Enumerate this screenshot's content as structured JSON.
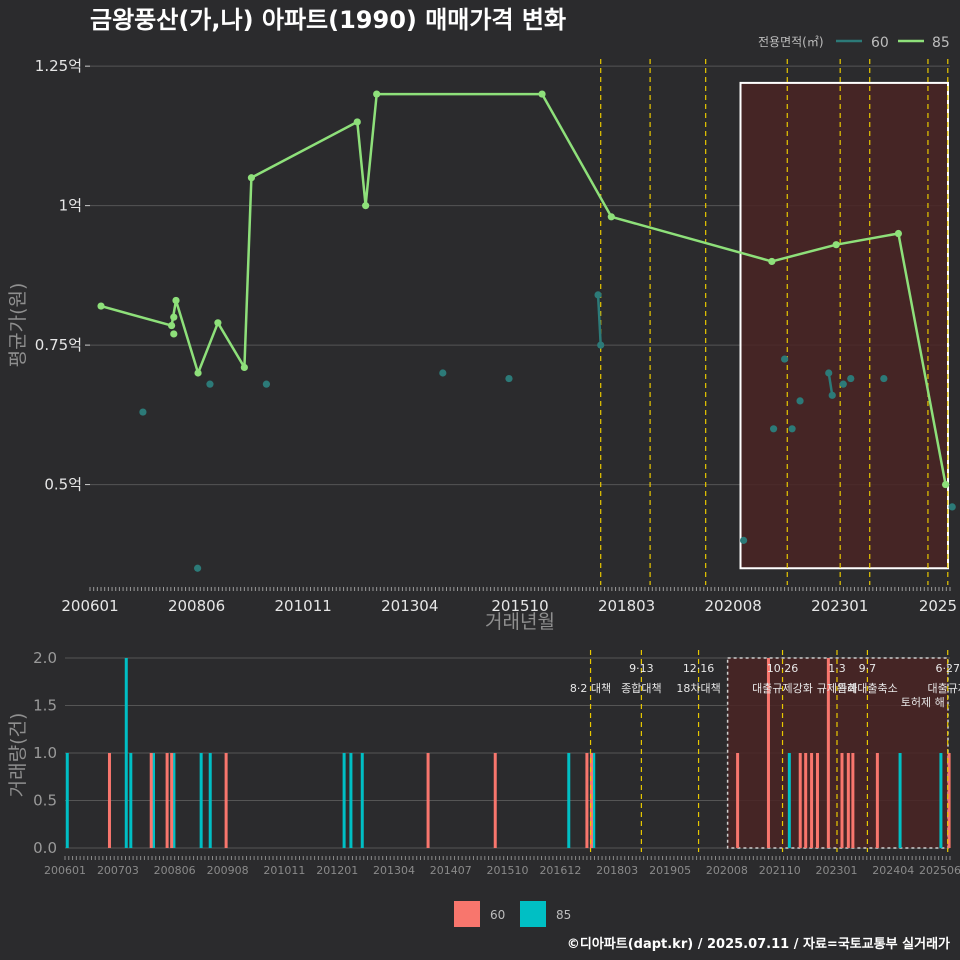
{
  "title": "금왕풍산(가,나) 아파트(1990) 매매가격 변화",
  "caption": "©디아파트(dapt.kr) / 2025.07.11 / 자료=국토교통부 실거래가",
  "colors": {
    "background": "#2b2b2d",
    "line85": "#8ee07a",
    "point60": "#2c7a78",
    "bar60": "#f8766d",
    "bar85": "#00bfc4",
    "highlight_fill": "#4a2525",
    "policy_line": "#e8c800",
    "grid": "#555555"
  },
  "chart_data": [
    {
      "type": "line",
      "ylabel": "평균가(원)",
      "xlabel": "거래년월",
      "x_ticks": [
        "200601",
        "200806",
        "201011",
        "201304",
        "201510",
        "201803",
        "202008",
        "202301",
        "2025"
      ],
      "y_ticks": [
        {
          "value": 0.5,
          "label": "0.5억"
        },
        {
          "value": 0.75,
          "label": "0.75억"
        },
        {
          "value": 1.0,
          "label": "1억"
        },
        {
          "value": 1.25,
          "label": "1.25억"
        }
      ],
      "xlim": [
        2006.0,
        2025.5
      ],
      "ylim": [
        0.32,
        1.27
      ],
      "legend": {
        "title": "전용면적(㎡)",
        "position": "top-right",
        "entries": [
          "60",
          "85"
        ]
      },
      "highlight_x": [
        2020.75,
        2025.5
      ],
      "highlight_y": [
        0.35,
        1.22
      ],
      "policy_x": [
        2017.58,
        2018.7,
        2019.96,
        2021.81,
        2023.01,
        2023.68,
        2025.0,
        2025.45
      ],
      "series": [
        {
          "name": "85",
          "kind": "line",
          "x": [
            2006.25,
            2007.85,
            2007.95,
            2008.45,
            2008.9,
            2009.5,
            2009.66,
            2012.06,
            2012.25,
            2012.5,
            2016.25,
            2017.82,
            2021.46,
            2022.92,
            2024.33,
            2025.4
          ],
          "y": [
            0.82,
            0.785,
            0.83,
            0.7,
            0.79,
            0.71,
            1.05,
            1.15,
            1.0,
            1.2,
            1.2,
            0.98,
            0.9,
            0.93,
            0.95,
            0.5
          ],
          "extra_points": [
            {
              "x": 2007.9,
              "y": 0.8
            },
            {
              "x": 2007.9,
              "y": 0.77
            }
          ]
        },
        {
          "name": "60",
          "kind": "points",
          "x": [
            2007.2,
            2008.72,
            2008.44,
            2010.0,
            2014.0,
            2015.5,
            2017.52,
            2017.58,
            2020.82,
            2021.5,
            2021.75,
            2021.92,
            2022.1,
            2022.75,
            2022.83,
            2023.08,
            2023.25,
            2024.0,
            2025.55
          ],
          "y": [
            0.63,
            0.68,
            0.35,
            0.68,
            0.7,
            0.69,
            0.84,
            0.75,
            0.4,
            0.6,
            0.725,
            0.6,
            0.65,
            0.7,
            0.66,
            0.68,
            0.69,
            0.69,
            0.46
          ],
          "connect": [
            [
              6,
              7
            ],
            [
              13,
              14
            ]
          ]
        }
      ]
    },
    {
      "type": "bar",
      "ylabel": "거래량(건)",
      "y_ticks": [
        "0.0",
        "0.5",
        "1.0",
        "1.5",
        "2.0"
      ],
      "ylim": [
        0,
        2
      ],
      "x_ticks": [
        "200601",
        "200703",
        "200806",
        "200908",
        "201011",
        "201201",
        "201304",
        "201407",
        "201510",
        "201612",
        "201803",
        "201905",
        "202008",
        "202110",
        "202301",
        "202404",
        "202506"
      ],
      "legend": {
        "position": "bottom",
        "entries": [
          "60",
          "85"
        ]
      },
      "highlight_x": [
        2020.6,
        2025.5
      ],
      "policies": [
        {
          "x": 2017.58,
          "line1": "",
          "line2": "8·2 대책"
        },
        {
          "x": 2018.7,
          "line1": "9·13",
          "line2": "종합대책"
        },
        {
          "x": 2019.96,
          "line1": "12·16",
          "line2": "18차대책"
        },
        {
          "x": 2021.81,
          "line1": "10·26",
          "line2": "대출규제강화"
        },
        {
          "x": 2023.01,
          "line1": "1·3",
          "line2": "규제완화"
        },
        {
          "x": 2023.68,
          "line1": "9·7",
          "line2": "특례대출축소"
        },
        {
          "x": 2025.45,
          "line1": "6·27",
          "line2": "대출규제"
        }
      ],
      "policy_extra": [
        {
          "x": 2024.9,
          "line": "토허제 해"
        }
      ],
      "series": [
        {
          "name": "85",
          "x": [
            2006.05,
            2007.35,
            2007.45,
            2007.95,
            2008.4,
            2009.0,
            2009.2,
            2012.15,
            2012.3,
            2012.55,
            2017.1,
            2017.65,
            2021.96,
            2024.4,
            2025.3
          ],
          "values": [
            1,
            2,
            1,
            1,
            1,
            1,
            1,
            1,
            1,
            1,
            1,
            1,
            1,
            1,
            1
          ]
        },
        {
          "name": "60",
          "x": [
            2006.98,
            2007.9,
            2008.25,
            2008.35,
            2009.55,
            2014.0,
            2015.48,
            2017.5,
            2017.6,
            2020.82,
            2021.5,
            2022.2,
            2022.32,
            2022.45,
            2022.58,
            2022.82,
            2023.12,
            2023.26,
            2023.36,
            2023.9,
            2025.48
          ],
          "values": [
            1,
            1,
            1,
            1,
            1,
            1,
            1,
            1,
            1,
            1,
            2,
            1,
            1,
            1,
            1,
            2,
            1,
            1,
            1,
            1,
            1
          ]
        }
      ]
    }
  ]
}
